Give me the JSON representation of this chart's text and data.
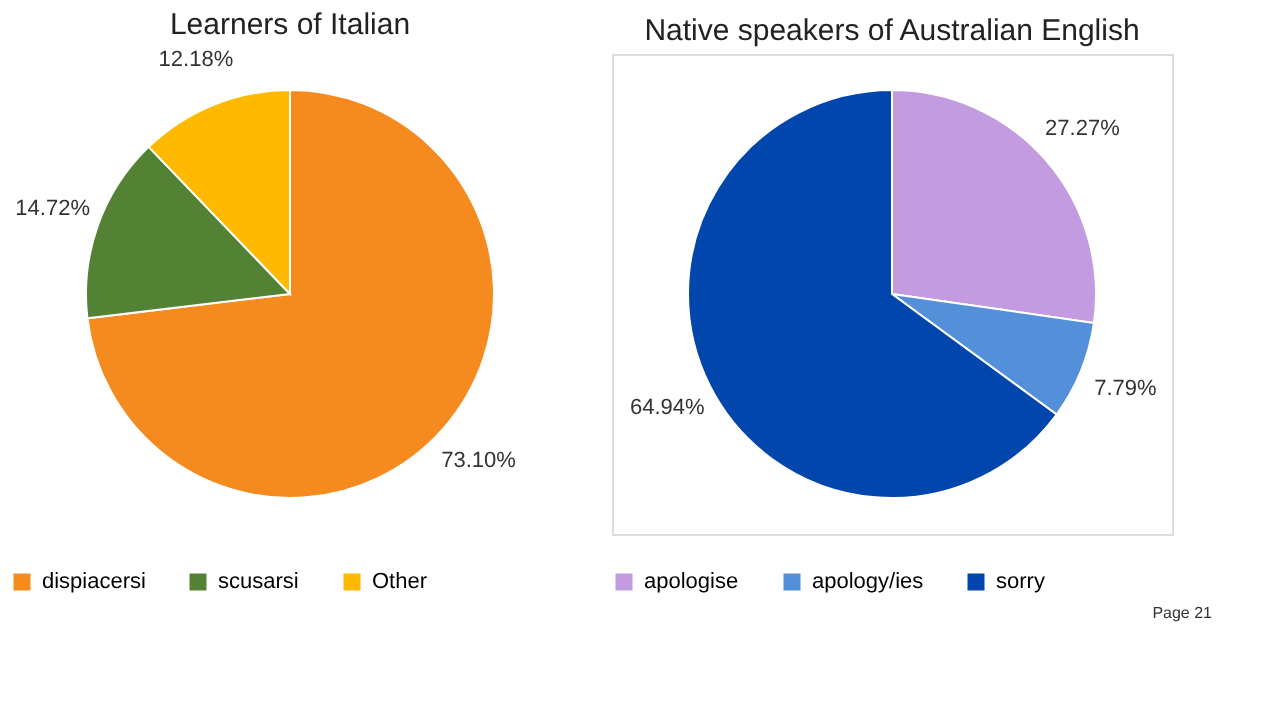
{
  "chart_data": [
    {
      "type": "pie",
      "title": "Learners of Italian",
      "categories": [
        "dispiacersi",
        "scusarsi",
        "Other"
      ],
      "values": [
        73.1,
        14.72,
        12.18
      ],
      "value_labels": [
        "73.10%",
        "14.72%",
        "12.18%"
      ],
      "colors": [
        "#f58a1f",
        "#548235",
        "#ffb900"
      ],
      "legend": "bottom"
    },
    {
      "type": "pie",
      "title": "Native speakers of Australian English",
      "categories": [
        "apologise",
        "apology/ies",
        "sorry"
      ],
      "values": [
        27.27,
        7.79,
        64.94
      ],
      "value_labels": [
        "27.27%",
        "7.79%",
        "64.94%"
      ],
      "colors": [
        "#c39be0",
        "#5390d9",
        "#0046ad"
      ],
      "legend": "bottom",
      "annotations": [
        "Page 21"
      ]
    }
  ]
}
